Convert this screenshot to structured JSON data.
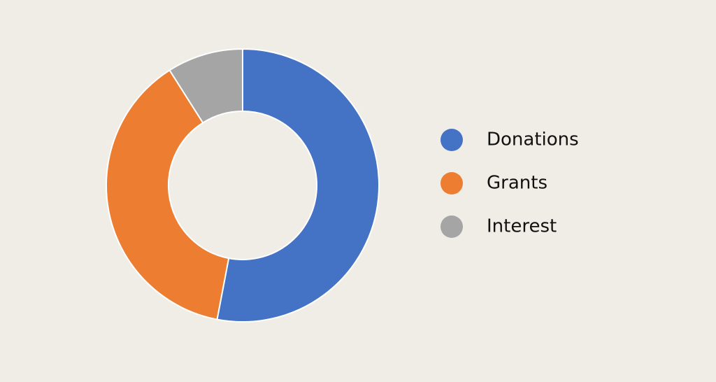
{
  "chart_data": {
    "type": "donut",
    "categories": [
      "Donations",
      "Grants",
      "Interest"
    ],
    "values": [
      53,
      38,
      9
    ],
    "colors": [
      "#4472c4",
      "#ed7d31",
      "#a5a5a5"
    ],
    "legend": "right"
  }
}
